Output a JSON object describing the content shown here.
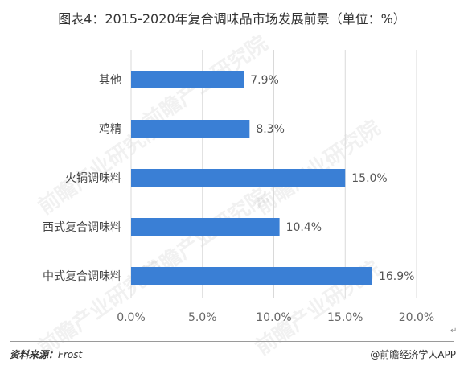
{
  "title": "图表4：2015-2020年复合调味品市场发展前景（单位：%）",
  "chart_data": {
    "type": "bar",
    "orientation": "horizontal",
    "title": "图表4：2015-2020年复合调味品市场发展前景（单位：%）",
    "categories": [
      "其他",
      "鸡精",
      "火锅调味料",
      "西式复合调味料",
      "中式复合调味料"
    ],
    "values": [
      7.9,
      8.3,
      15.0,
      10.4,
      16.9
    ],
    "value_labels": [
      "7.9%",
      "8.3%",
      "15.0%",
      "10.4%",
      "16.9%"
    ],
    "xlim": [
      0,
      20
    ],
    "xticks": [
      0,
      5,
      10,
      15,
      20
    ],
    "xtick_labels": [
      "0.0%",
      "5.0%",
      "10.0%",
      "15.0%",
      "20.0%"
    ],
    "grid": true,
    "bar_color": "#3a7fd5"
  },
  "watermark": "前瞻产业研究院",
  "footer": {
    "source_label": "资料来源：",
    "source_value": "Frost",
    "credit": "@前瞻经济学人APP"
  },
  "mark": "↵",
  "colors": {
    "bar": "#3a7fd5",
    "grid": "#d9d9d9"
  }
}
